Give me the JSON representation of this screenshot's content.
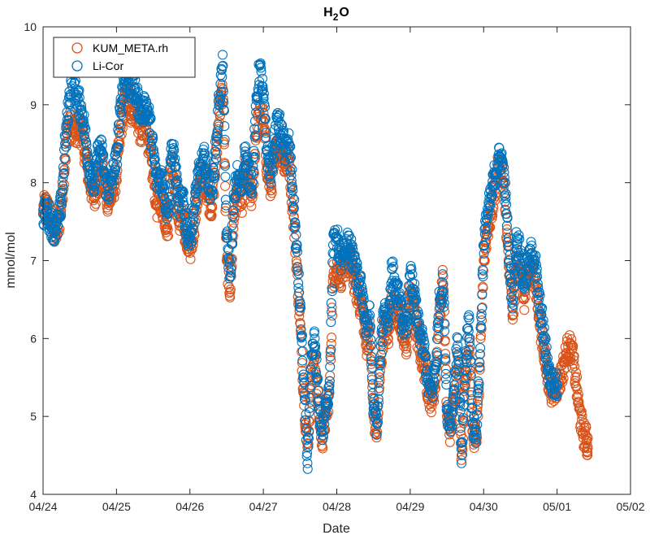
{
  "chart_data": {
    "type": "scatter",
    "title": {
      "main": "H",
      "sub": "2",
      "tail": "O"
    },
    "xlabel": "Date",
    "ylabel": "mmol/mol",
    "xlim": [
      0,
      8
    ],
    "ylim": [
      4,
      10
    ],
    "x_ticks": [
      0,
      1,
      2,
      3,
      4,
      5,
      6,
      7,
      8
    ],
    "x_tick_labels": [
      "04/24",
      "04/25",
      "04/26",
      "04/27",
      "04/28",
      "04/29",
      "04/30",
      "05/01",
      "05/02"
    ],
    "y_ticks": [
      4,
      5,
      6,
      7,
      8,
      9,
      10
    ],
    "y_tick_labels": [
      "4",
      "5",
      "6",
      "7",
      "8",
      "9",
      "10"
    ],
    "grid": false,
    "legend_position": "top-left",
    "series": [
      {
        "name": "KUM_META.rh",
        "color": "#D95319",
        "points": [
          [
            0.0,
            7.65
          ],
          [
            0.05,
            7.7
          ],
          [
            0.1,
            7.55
          ],
          [
            0.15,
            7.35
          ],
          [
            0.2,
            7.4
          ],
          [
            0.25,
            7.7
          ],
          [
            0.3,
            8.3
          ],
          [
            0.35,
            8.8
          ],
          [
            0.4,
            8.7
          ],
          [
            0.45,
            8.6
          ],
          [
            0.5,
            8.75
          ],
          [
            0.55,
            8.5
          ],
          [
            0.6,
            8.2
          ],
          [
            0.65,
            7.95
          ],
          [
            0.7,
            7.8
          ],
          [
            0.75,
            8.1
          ],
          [
            0.8,
            8.2
          ],
          [
            0.85,
            7.85
          ],
          [
            0.9,
            7.75
          ],
          [
            0.95,
            7.9
          ],
          [
            1.0,
            8.1
          ],
          [
            1.05,
            8.6
          ],
          [
            1.1,
            9.0
          ],
          [
            1.15,
            9.1
          ],
          [
            1.2,
            8.9
          ],
          [
            1.25,
            9.0
          ],
          [
            1.3,
            8.75
          ],
          [
            1.35,
            8.6
          ],
          [
            1.4,
            8.85
          ],
          [
            1.45,
            8.4
          ],
          [
            1.5,
            8.1
          ],
          [
            1.55,
            7.7
          ],
          [
            1.6,
            7.8
          ],
          [
            1.65,
            7.6
          ],
          [
            1.7,
            7.4
          ],
          [
            1.75,
            8.3
          ],
          [
            1.8,
            8.0
          ],
          [
            1.85,
            7.5
          ],
          [
            1.9,
            7.6
          ],
          [
            1.95,
            7.2
          ],
          [
            2.0,
            7.1
          ],
          [
            2.05,
            7.4
          ],
          [
            2.1,
            7.8
          ],
          [
            2.15,
            8.0
          ],
          [
            2.2,
            8.1
          ],
          [
            2.25,
            7.8
          ],
          [
            2.3,
            7.7
          ],
          [
            2.35,
            8.2
          ],
          [
            2.4,
            8.9
          ],
          [
            2.45,
            9.2
          ],
          [
            2.5,
            7.0
          ],
          [
            2.55,
            6.6
          ],
          [
            2.6,
            7.6
          ],
          [
            2.65,
            7.9
          ],
          [
            2.7,
            7.7
          ],
          [
            2.75,
            8.2
          ],
          [
            2.8,
            7.9
          ],
          [
            2.85,
            7.8
          ],
          [
            2.9,
            8.6
          ],
          [
            2.95,
            8.9
          ],
          [
            3.0,
            8.8
          ],
          [
            3.05,
            8.2
          ],
          [
            3.1,
            7.9
          ],
          [
            3.15,
            8.3
          ],
          [
            3.2,
            8.5
          ],
          [
            3.25,
            8.4
          ],
          [
            3.3,
            8.2
          ],
          [
            3.35,
            8.3
          ],
          [
            3.4,
            7.7
          ],
          [
            3.45,
            7.0
          ],
          [
            3.5,
            6.2
          ],
          [
            3.55,
            5.3
          ],
          [
            3.6,
            4.6
          ],
          [
            3.65,
            5.4
          ],
          [
            3.7,
            5.8
          ],
          [
            3.75,
            5.1
          ],
          [
            3.8,
            4.7
          ],
          [
            3.85,
            5.0
          ],
          [
            3.9,
            5.3
          ],
          [
            3.95,
            6.8
          ],
          [
            4.0,
            6.9
          ],
          [
            4.05,
            6.8
          ],
          [
            4.1,
            6.9
          ],
          [
            4.15,
            7.0
          ],
          [
            4.2,
            6.9
          ],
          [
            4.25,
            6.7
          ],
          [
            4.3,
            6.5
          ],
          [
            4.35,
            6.4
          ],
          [
            4.4,
            5.9
          ],
          [
            4.45,
            6.1
          ],
          [
            4.5,
            5.0
          ],
          [
            4.55,
            4.8
          ],
          [
            4.6,
            5.7
          ],
          [
            4.65,
            6.2
          ],
          [
            4.7,
            6.0
          ],
          [
            4.75,
            6.5
          ],
          [
            4.8,
            6.4
          ],
          [
            4.85,
            6.3
          ],
          [
            4.9,
            6.0
          ],
          [
            4.95,
            5.9
          ],
          [
            5.0,
            6.6
          ],
          [
            5.05,
            6.4
          ],
          [
            5.1,
            6.0
          ],
          [
            5.15,
            5.8
          ],
          [
            5.2,
            5.6
          ],
          [
            5.25,
            5.3
          ],
          [
            5.3,
            5.2
          ],
          [
            5.35,
            5.5
          ],
          [
            5.4,
            6.3
          ],
          [
            5.45,
            6.8
          ],
          [
            5.5,
            5.0
          ],
          [
            5.55,
            4.8
          ],
          [
            5.6,
            5.2
          ],
          [
            5.65,
            5.8
          ],
          [
            5.7,
            4.5
          ],
          [
            5.75,
            5.4
          ],
          [
            5.8,
            6.0
          ],
          [
            5.85,
            4.8
          ],
          [
            5.9,
            4.7
          ],
          [
            5.95,
            5.6
          ],
          [
            6.0,
            7.0
          ],
          [
            6.05,
            7.4
          ],
          [
            6.1,
            7.6
          ],
          [
            6.15,
            7.9
          ],
          [
            6.2,
            8.2
          ],
          [
            6.25,
            8.2
          ],
          [
            6.3,
            7.6
          ],
          [
            6.35,
            6.8
          ],
          [
            6.4,
            6.3
          ],
          [
            6.45,
            7.0
          ],
          [
            6.5,
            6.9
          ],
          [
            6.55,
            6.5
          ],
          [
            6.6,
            6.7
          ],
          [
            6.65,
            6.9
          ],
          [
            6.7,
            6.8
          ],
          [
            6.75,
            6.3
          ],
          [
            6.8,
            6.0
          ],
          [
            6.85,
            5.6
          ],
          [
            6.9,
            5.4
          ],
          [
            6.95,
            5.3
          ],
          [
            7.0,
            5.4
          ],
          [
            7.05,
            5.5
          ],
          [
            7.1,
            5.7
          ],
          [
            7.15,
            5.9
          ],
          [
            7.2,
            5.85
          ],
          [
            7.25,
            5.5
          ],
          [
            7.3,
            5.1
          ],
          [
            7.35,
            4.8
          ],
          [
            7.4,
            4.7
          ],
          [
            7.42,
            4.6
          ]
        ]
      },
      {
        "name": "Li-Cor",
        "color": "#0072BD",
        "points": [
          [
            0.0,
            7.6
          ],
          [
            0.05,
            7.65
          ],
          [
            0.1,
            7.5
          ],
          [
            0.15,
            7.4
          ],
          [
            0.2,
            7.45
          ],
          [
            0.25,
            7.75
          ],
          [
            0.3,
            8.5
          ],
          [
            0.35,
            9.0
          ],
          [
            0.4,
            9.4
          ],
          [
            0.45,
            9.1
          ],
          [
            0.5,
            9.0
          ],
          [
            0.55,
            8.8
          ],
          [
            0.6,
            8.4
          ],
          [
            0.65,
            8.1
          ],
          [
            0.7,
            7.95
          ],
          [
            0.75,
            8.4
          ],
          [
            0.8,
            8.4
          ],
          [
            0.85,
            8.0
          ],
          [
            0.9,
            7.9
          ],
          [
            0.95,
            8.1
          ],
          [
            1.0,
            8.3
          ],
          [
            1.05,
            8.9
          ],
          [
            1.1,
            9.3
          ],
          [
            1.15,
            9.4
          ],
          [
            1.2,
            9.2
          ],
          [
            1.25,
            9.2
          ],
          [
            1.3,
            9.0
          ],
          [
            1.35,
            8.9
          ],
          [
            1.4,
            9.0
          ],
          [
            1.45,
            8.8
          ],
          [
            1.5,
            8.4
          ],
          [
            1.55,
            8.0
          ],
          [
            1.6,
            8.1
          ],
          [
            1.65,
            7.9
          ],
          [
            1.7,
            7.6
          ],
          [
            1.75,
            8.5
          ],
          [
            1.8,
            8.2
          ],
          [
            1.85,
            7.7
          ],
          [
            1.9,
            7.8
          ],
          [
            1.95,
            7.4
          ],
          [
            2.0,
            7.3
          ],
          [
            2.05,
            7.6
          ],
          [
            2.1,
            8.0
          ],
          [
            2.15,
            8.2
          ],
          [
            2.2,
            8.3
          ],
          [
            2.25,
            8.0
          ],
          [
            2.3,
            7.9
          ],
          [
            2.35,
            8.4
          ],
          [
            2.4,
            9.1
          ],
          [
            2.45,
            9.5
          ],
          [
            2.5,
            7.3
          ],
          [
            2.55,
            6.8
          ],
          [
            2.6,
            7.8
          ],
          [
            2.65,
            8.1
          ],
          [
            2.7,
            7.9
          ],
          [
            2.75,
            8.4
          ],
          [
            2.8,
            8.1
          ],
          [
            2.85,
            8.0
          ],
          [
            2.9,
            8.9
          ],
          [
            2.95,
            9.5
          ],
          [
            3.0,
            9.1
          ],
          [
            3.05,
            8.4
          ],
          [
            3.1,
            8.1
          ],
          [
            3.15,
            8.5
          ],
          [
            3.2,
            8.8
          ],
          [
            3.25,
            8.6
          ],
          [
            3.3,
            8.4
          ],
          [
            3.35,
            8.5
          ],
          [
            3.4,
            7.9
          ],
          [
            3.45,
            7.2
          ],
          [
            3.5,
            6.4
          ],
          [
            3.55,
            5.5
          ],
          [
            3.6,
            4.4
          ],
          [
            3.65,
            5.6
          ],
          [
            3.7,
            6.0
          ],
          [
            3.75,
            5.2
          ],
          [
            3.8,
            4.8
          ],
          [
            3.85,
            5.1
          ],
          [
            3.9,
            5.4
          ],
          [
            3.95,
            7.2
          ],
          [
            4.0,
            7.3
          ],
          [
            4.05,
            7.0
          ],
          [
            4.1,
            7.1
          ],
          [
            4.15,
            7.2
          ],
          [
            4.2,
            7.1
          ],
          [
            4.25,
            6.9
          ],
          [
            4.3,
            6.7
          ],
          [
            4.35,
            6.6
          ],
          [
            4.4,
            6.1
          ],
          [
            4.45,
            6.3
          ],
          [
            4.5,
            5.1
          ],
          [
            4.55,
            4.9
          ],
          [
            4.6,
            5.9
          ],
          [
            4.65,
            6.4
          ],
          [
            4.7,
            6.2
          ],
          [
            4.75,
            6.9
          ],
          [
            4.8,
            6.6
          ],
          [
            4.85,
            6.5
          ],
          [
            4.9,
            6.2
          ],
          [
            4.95,
            6.1
          ],
          [
            5.0,
            6.8
          ],
          [
            5.05,
            6.6
          ],
          [
            5.1,
            6.2
          ],
          [
            5.15,
            6.0
          ],
          [
            5.2,
            5.8
          ],
          [
            5.25,
            5.4
          ],
          [
            5.3,
            5.3
          ],
          [
            5.35,
            5.7
          ],
          [
            5.4,
            6.5
          ],
          [
            5.45,
            6.7
          ],
          [
            5.5,
            5.1
          ],
          [
            5.55,
            4.9
          ],
          [
            5.6,
            5.4
          ],
          [
            5.65,
            6.0
          ],
          [
            5.7,
            4.4
          ],
          [
            5.75,
            5.6
          ],
          [
            5.8,
            6.3
          ],
          [
            5.85,
            4.9
          ],
          [
            5.9,
            4.8
          ],
          [
            5.95,
            5.8
          ],
          [
            6.0,
            7.2
          ],
          [
            6.05,
            7.6
          ],
          [
            6.1,
            7.8
          ],
          [
            6.15,
            8.1
          ],
          [
            6.2,
            8.3
          ],
          [
            6.25,
            8.3
          ],
          [
            6.3,
            7.8
          ],
          [
            6.35,
            7.0
          ],
          [
            6.4,
            6.5
          ],
          [
            6.45,
            7.3
          ],
          [
            6.5,
            7.1
          ],
          [
            6.55,
            6.7
          ],
          [
            6.6,
            6.9
          ],
          [
            6.65,
            7.1
          ],
          [
            6.7,
            7.0
          ],
          [
            6.75,
            6.5
          ],
          [
            6.8,
            6.2
          ],
          [
            6.85,
            5.8
          ],
          [
            6.9,
            5.5
          ],
          [
            6.95,
            5.4
          ],
          [
            7.0,
            5.4
          ]
        ]
      }
    ]
  }
}
